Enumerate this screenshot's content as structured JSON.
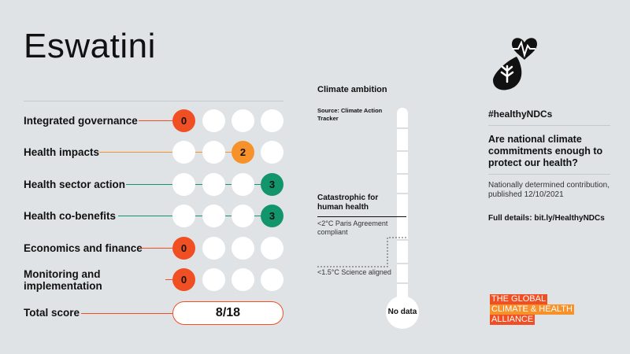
{
  "country": "Eswatini",
  "rows": [
    {
      "label": "Integrated governance",
      "score": "0",
      "color": "#f04e23"
    },
    {
      "label": "Health impacts",
      "score": "2",
      "color": "#f7922a"
    },
    {
      "label": "Health sector action",
      "score": "3",
      "color": "#13956b"
    },
    {
      "label": "Health co-benefits",
      "score": "3",
      "color": "#13956b"
    },
    {
      "label": "Economics and finance",
      "score": "0",
      "color": "#f04e23"
    },
    {
      "label": "Monitoring and implementation",
      "score": "0",
      "color": "#f04e23"
    }
  ],
  "total": {
    "label": "Total score",
    "value": "8/18"
  },
  "climate": {
    "title": "Climate ambition",
    "source": "Source: Climate Action Tracker",
    "catastrophic": "Catastrophic for human health",
    "paris": "<2°C Paris Agreement compliant",
    "science": "<1.5°C Science aligned",
    "bulb": "No data"
  },
  "sidebar": {
    "logo_icon": "heart-drop-leaf-icon",
    "hashtag": "#healthyNDCs",
    "question": "Are national climate commitments enough to protect our health?",
    "ndc": "Nationally determined contribution, published 12/10/2021",
    "details": "Full details: bit.ly/HealthyNDCs"
  },
  "brand": {
    "line1": "THE GLOBAL",
    "line2": "CLIMATE & HEALTH",
    "line3": "ALLIANCE"
  }
}
